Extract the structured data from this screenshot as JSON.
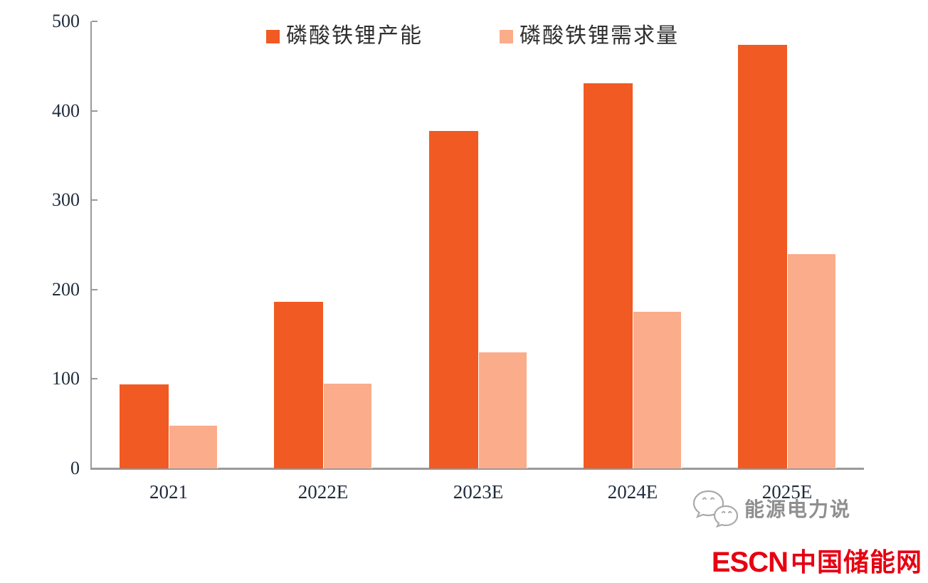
{
  "chart_data": {
    "type": "bar",
    "categories": [
      "2021",
      "2022E",
      "2023E",
      "2024E",
      "2025E"
    ],
    "series": [
      {
        "name": "磷酸铁锂产能",
        "color": "#F15A22",
        "values": [
          94,
          186,
          377,
          431,
          474
        ]
      },
      {
        "name": "磷酸铁锂需求量",
        "color": "#FBAC8B",
        "values": [
          48,
          95,
          130,
          175,
          240
        ]
      }
    ],
    "title": "",
    "xlabel": "",
    "ylabel": "",
    "ylim": [
      0,
      500
    ],
    "yticks": [
      0,
      100,
      200,
      300,
      400,
      500
    ],
    "grid": false,
    "legend_position": "top"
  },
  "watermark": {
    "icon": "wechat-icon",
    "text": "能源电力说"
  },
  "footer_logo": {
    "latin": "ESCN",
    "chinese": "中国储能网",
    "color": "#E60012"
  },
  "colors": {
    "capacity_bar": "#F15A22",
    "demand_bar": "#FBAC8B",
    "axis": "#9A9A9A",
    "tick_label": "#1F2B3C",
    "watermark_gray": "#8F8F8F",
    "logo_red": "#E60012"
  }
}
